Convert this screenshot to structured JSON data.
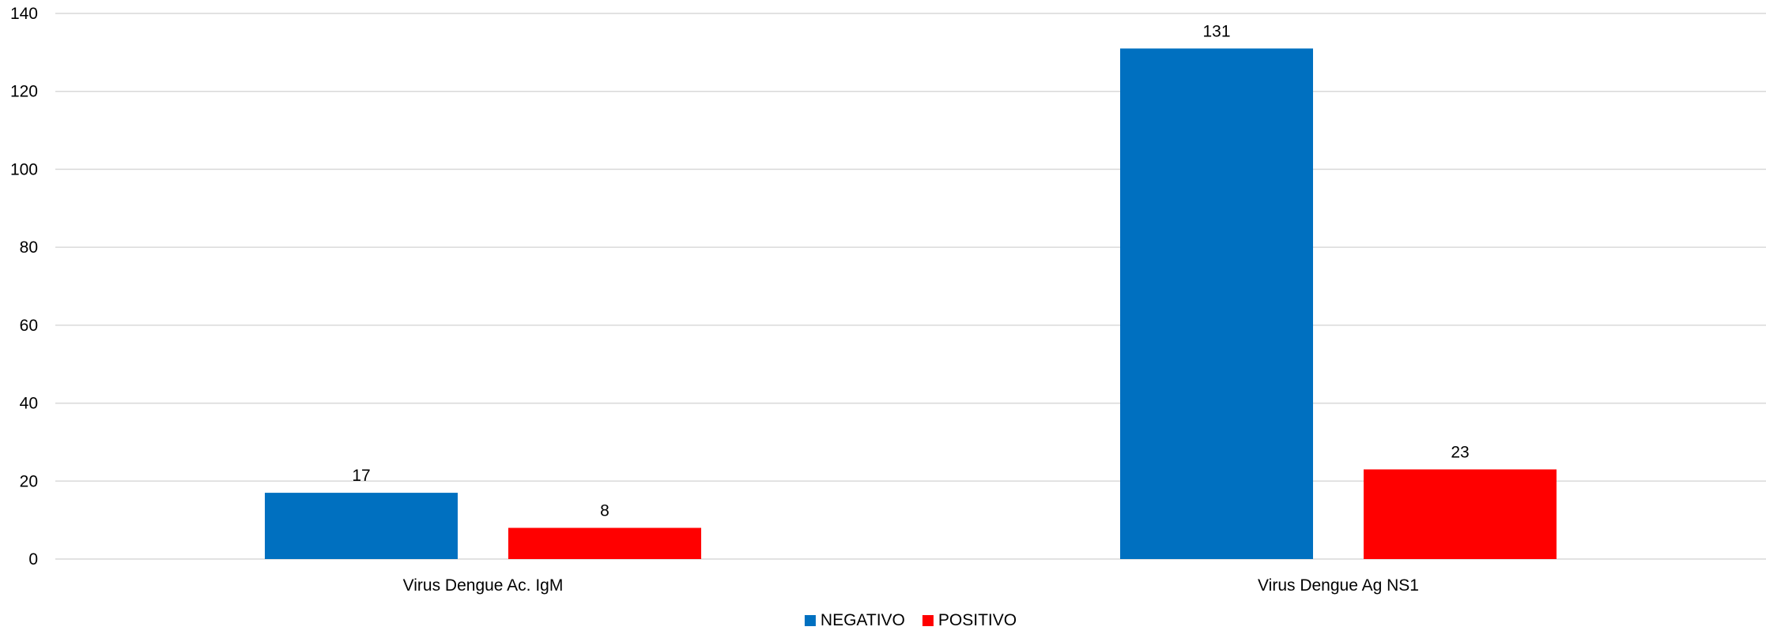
{
  "chart_data": {
    "type": "bar",
    "title": "",
    "xlabel": "",
    "ylabel": "",
    "categories": [
      "Virus Dengue Ac. IgM",
      "Virus Dengue Ag NS1"
    ],
    "series": [
      {
        "name": "NEGATIVO",
        "color": "#0070C0",
        "values": [
          17,
          131
        ]
      },
      {
        "name": "POSITIVO",
        "color": "#FF0000",
        "values": [
          8,
          23
        ]
      }
    ],
    "ylim": [
      0,
      140
    ],
    "yticks": [
      0,
      20,
      40,
      60,
      80,
      100,
      120,
      140
    ],
    "grid": true,
    "data_labels": true,
    "legend_position": "bottom",
    "gridline_color": "#D9D9D9"
  }
}
